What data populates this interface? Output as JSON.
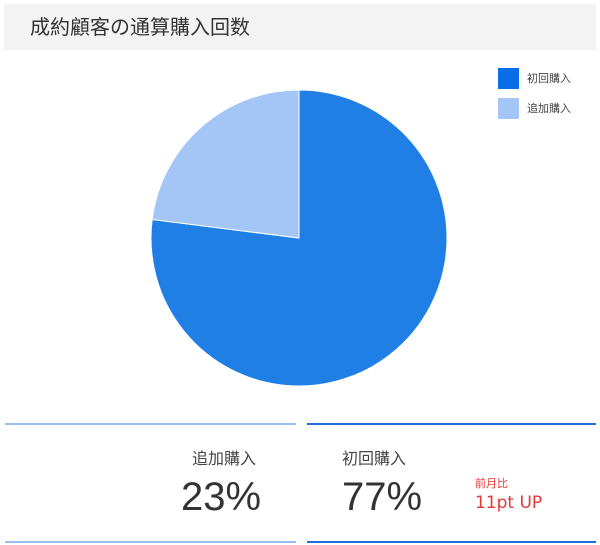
{
  "title": "成約顧客の通算購入回数",
  "chart_data": {
    "type": "pie",
    "title": "成約顧客の通算購入回数",
    "slices": [
      {
        "label": "初回購入",
        "value": 77,
        "color": "#1f7fe5"
      },
      {
        "label": "追加購入",
        "value": 23,
        "color": "#a4c6f6"
      }
    ],
    "legend_position": "top-right",
    "legend_colors": [
      "#0a6de8",
      "#a4c6f6"
    ]
  },
  "cards": [
    {
      "label": "追加購入",
      "value": "23%"
    },
    {
      "label": "初回購入",
      "value": "77%",
      "compare_label": "前月比",
      "compare_value": "11pt UP"
    }
  ]
}
